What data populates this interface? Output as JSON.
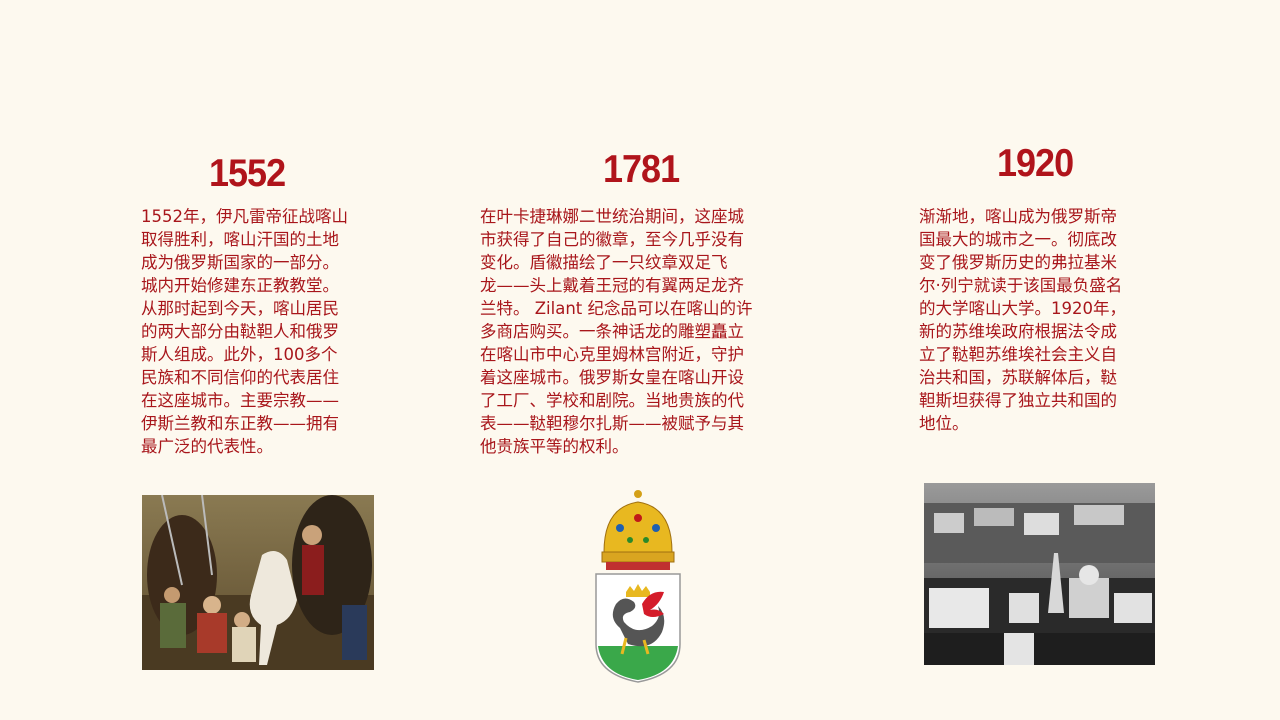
{
  "columns": [
    {
      "year": "1552",
      "text_lines": [
        "1552年，伊凡雷帝征战喀山",
        "取得胜利，喀山汗国的土地",
        "成为俄罗斯国家的一部分。",
        "城内开始修建东正教教堂。",
        "从那时起到今天，喀山居民",
        "的两大部分由鞑靼人和俄罗",
        "斯人组成。此外，100多个",
        "民族和不同信仰的代表居住",
        "在这座城市。主要宗教——",
        "伊斯兰教和东正教——拥有",
        "最广泛的代表性。"
      ],
      "image": "painting-ivan-conquest"
    },
    {
      "year": "1781",
      "text_lines": [
        "在叶卡捷琳娜二世统治期间，这座城",
        "市获得了自己的徽章，至今几乎没有",
        "变化。盾徽描绘了一只纹章双足飞",
        "龙——头上戴着王冠的有翼两足龙齐",
        "兰特。 Zilant 纪念品可以在喀山的许",
        "多商店购买。一条神话龙的雕塑矗立",
        "在喀山市中心克里姆林宫附近，守护",
        "着这座城市。俄罗斯女皇在喀山开设",
        "了工厂、学校和剧院。当地贵族的代",
        "表——鞑靼穆尔扎斯——被赋予与其",
        "他贵族平等的权利。"
      ],
      "image": "kazan-coat-of-arms"
    },
    {
      "year": "1920",
      "text_lines": [
        "渐渐地，喀山成为俄罗斯帝",
        "国最大的城市之一。彻底改",
        "变了俄罗斯历史的弗拉基米",
        "尔·列宁就读于该国最负盛名",
        "的大学喀山大学。1920年，",
        "新的苏维埃政府根据法令成",
        "立了鞑靼苏维埃社会主义自",
        "治共和国，苏联解体后，鞑",
        "靼斯坦获得了独立共和国的",
        "地位。"
      ],
      "image": "kazan-city-photo"
    }
  ],
  "colors": {
    "background": "#fdf9ef",
    "accent": "#b0141b"
  }
}
